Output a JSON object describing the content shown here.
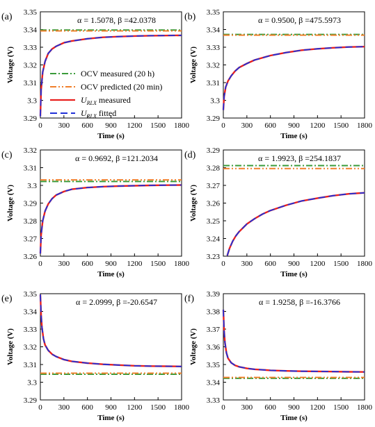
{
  "figure": {
    "legend": {
      "items": [
        {
          "label": "OCV measured (20 h)",
          "color": "#3a9b3a",
          "dash": "dashdot"
        },
        {
          "label": "OCV predicted (20 min)",
          "color": "#f07f2a",
          "dash": "dashdotdot"
        },
        {
          "label": "U_RLX measured",
          "color": "#e8201e",
          "dash": "solid"
        },
        {
          "label": "U_RLX fitted",
          "color": "#1f2fd8",
          "dash": "dash"
        }
      ]
    }
  },
  "chart_data": [
    {
      "panel": "(a)",
      "type": "line",
      "params": "α = 1.5078, β =42.0378",
      "xlabel": "Time (s)",
      "ylabel": "Voltage (V)",
      "xlim": [
        0,
        1800
      ],
      "ylim": [
        3.29,
        3.35
      ],
      "xticks": [
        0,
        300,
        600,
        900,
        1200,
        1500,
        1800
      ],
      "yticks": [
        "3.29",
        "3.3",
        "3.31",
        "3.32",
        "3.33",
        "3.34",
        "3.35"
      ],
      "ocv_measured": 3.3397,
      "ocv_predicted": 3.3392,
      "series": [
        {
          "name": "U_RLX measured",
          "x": [
            0,
            10,
            30,
            60,
            100,
            150,
            200,
            300,
            400,
            600,
            800,
            1000,
            1200,
            1400,
            1600,
            1800
          ],
          "y": [
            3.291,
            3.306,
            3.316,
            3.322,
            3.3265,
            3.329,
            3.3305,
            3.3325,
            3.3335,
            3.3348,
            3.3356,
            3.336,
            3.3363,
            3.3365,
            3.3366,
            3.3367
          ]
        },
        {
          "name": "U_RLX fitted",
          "x": [
            0,
            10,
            30,
            60,
            100,
            150,
            200,
            300,
            400,
            600,
            800,
            1000,
            1200,
            1400,
            1600,
            1800
          ],
          "y": [
            3.291,
            3.306,
            3.316,
            3.322,
            3.3265,
            3.329,
            3.3305,
            3.3325,
            3.3335,
            3.3348,
            3.3356,
            3.336,
            3.3363,
            3.3365,
            3.3366,
            3.3367
          ]
        }
      ]
    },
    {
      "panel": "(b)",
      "type": "line",
      "params": "α = 0.9500, β =475.5973",
      "xlabel": "Time (s)",
      "ylabel": "Voltage (V)",
      "xlim": [
        0,
        1800
      ],
      "ylim": [
        3.29,
        3.35
      ],
      "xticks": [
        0,
        300,
        600,
        900,
        1200,
        1500,
        1800
      ],
      "yticks": [
        "3.29",
        "3.3",
        "3.31",
        "3.32",
        "3.33",
        "3.34",
        "3.35"
      ],
      "ocv_measured": 3.3372,
      "ocv_predicted": 3.3368,
      "series": [
        {
          "name": "U_RLX measured",
          "x": [
            0,
            10,
            30,
            60,
            100,
            150,
            200,
            300,
            400,
            600,
            800,
            1000,
            1200,
            1400,
            1600,
            1800
          ],
          "y": [
            3.2945,
            3.302,
            3.3075,
            3.311,
            3.3138,
            3.3165,
            3.3185,
            3.3208,
            3.3228,
            3.3253,
            3.327,
            3.3283,
            3.3291,
            3.3297,
            3.3301,
            3.3303
          ]
        },
        {
          "name": "U_RLX fitted",
          "x": [
            0,
            10,
            30,
            60,
            100,
            150,
            200,
            300,
            400,
            600,
            800,
            1000,
            1200,
            1400,
            1600,
            1800
          ],
          "y": [
            3.2945,
            3.302,
            3.3075,
            3.311,
            3.3138,
            3.3165,
            3.3185,
            3.3208,
            3.3228,
            3.3253,
            3.327,
            3.3283,
            3.3291,
            3.3297,
            3.3301,
            3.3303
          ]
        }
      ]
    },
    {
      "panel": "(c)",
      "type": "line",
      "params": "α = 0.9692, β =121.2034",
      "xlabel": "Time (s)",
      "ylabel": "Voltage (V)",
      "xlim": [
        0,
        1800
      ],
      "ylim": [
        3.26,
        3.32
      ],
      "xticks": [
        0,
        300,
        600,
        900,
        1200,
        1500,
        1800
      ],
      "yticks": [
        "3.26",
        "3.27",
        "3.28",
        "3.29",
        "3.3",
        "3.31",
        "3.32"
      ],
      "ocv_measured": 3.3022,
      "ocv_predicted": 3.3031,
      "series": [
        {
          "name": "U_RLX measured",
          "x": [
            0,
            10,
            30,
            60,
            100,
            150,
            200,
            300,
            400,
            600,
            800,
            1000,
            1200,
            1400,
            1600,
            1800
          ],
          "y": [
            3.2615,
            3.272,
            3.28,
            3.2855,
            3.2895,
            3.2925,
            3.2945,
            3.2965,
            3.2978,
            3.2988,
            3.2993,
            3.2996,
            3.2998,
            3.3,
            3.3001,
            3.3002
          ]
        },
        {
          "name": "U_RLX fitted",
          "x": [
            0,
            10,
            30,
            60,
            100,
            150,
            200,
            300,
            400,
            600,
            800,
            1000,
            1200,
            1400,
            1600,
            1800
          ],
          "y": [
            3.2615,
            3.272,
            3.28,
            3.2855,
            3.2895,
            3.2925,
            3.2945,
            3.2965,
            3.2978,
            3.2988,
            3.2993,
            3.2996,
            3.2998,
            3.3,
            3.3001,
            3.3002
          ]
        }
      ]
    },
    {
      "panel": "(d)",
      "type": "line",
      "params": "α = 1.9923, β =254.1837",
      "xlabel": "Time (s)",
      "ylabel": "Voltage (V)",
      "xlim": [
        0,
        1800
      ],
      "ylim": [
        3.23,
        3.29
      ],
      "xticks": [
        0,
        300,
        600,
        900,
        1200,
        1500,
        1800
      ],
      "yticks": [
        "3.23",
        "3.24",
        "3.25",
        "3.26",
        "3.27",
        "3.28",
        "3.29"
      ],
      "ocv_measured": 3.2812,
      "ocv_predicted": 3.2795,
      "series": [
        {
          "name": "U_RLX measured",
          "x": [
            50,
            80,
            120,
            160,
            200,
            300,
            400,
            500,
            600,
            800,
            1000,
            1200,
            1400,
            1600,
            1800
          ],
          "y": [
            3.2303,
            3.2345,
            3.2385,
            3.2415,
            3.2438,
            3.2482,
            3.2512,
            3.2538,
            3.2558,
            3.2588,
            3.2612,
            3.2628,
            3.2642,
            3.2652,
            3.2658
          ]
        },
        {
          "name": "U_RLX fitted",
          "x": [
            50,
            80,
            120,
            160,
            200,
            300,
            400,
            500,
            600,
            800,
            1000,
            1200,
            1400,
            1600,
            1800
          ],
          "y": [
            3.2303,
            3.2345,
            3.2385,
            3.2415,
            3.2438,
            3.2482,
            3.2512,
            3.2538,
            3.2558,
            3.2588,
            3.2612,
            3.2628,
            3.2642,
            3.2652,
            3.2658
          ]
        }
      ]
    },
    {
      "panel": "(e)",
      "type": "line",
      "params": "α = 2.0999, β =-20.6547",
      "xlabel": "Time (s)",
      "ylabel": "Voltage (V)",
      "xlim": [
        0,
        1800
      ],
      "ylim": [
        3.29,
        3.35
      ],
      "xticks": [
        0,
        300,
        600,
        900,
        1200,
        1500,
        1800
      ],
      "yticks": [
        "3.29",
        "3.3",
        "3.31",
        "3.32",
        "3.33",
        "3.34",
        "3.35"
      ],
      "ocv_measured": 3.3045,
      "ocv_predicted": 3.3051,
      "series": [
        {
          "name": "U_RLX measured",
          "x": [
            0,
            10,
            20,
            40,
            60,
            100,
            150,
            200,
            300,
            400,
            600,
            800,
            1000,
            1200,
            1400,
            1600,
            1800
          ],
          "y": [
            3.3495,
            3.338,
            3.331,
            3.3245,
            3.321,
            3.318,
            3.3158,
            3.3145,
            3.3128,
            3.3118,
            3.3108,
            3.3101,
            3.3097,
            3.3093,
            3.3091,
            3.309,
            3.3089
          ]
        },
        {
          "name": "U_RLX fitted",
          "x": [
            0,
            10,
            20,
            40,
            60,
            100,
            150,
            200,
            300,
            400,
            600,
            800,
            1000,
            1200,
            1400,
            1600,
            1800
          ],
          "y": [
            3.3495,
            3.338,
            3.331,
            3.3245,
            3.321,
            3.318,
            3.3158,
            3.3145,
            3.3128,
            3.3118,
            3.3108,
            3.3101,
            3.3097,
            3.3093,
            3.3091,
            3.309,
            3.3089
          ]
        }
      ]
    },
    {
      "panel": "(f)",
      "type": "line",
      "params": "α = 1.9258, β =-16.3766",
      "xlabel": "Time (s)",
      "ylabel": "Voltage (V)",
      "xlim": [
        0,
        1800
      ],
      "ylim": [
        3.33,
        3.39
      ],
      "xticks": [
        0,
        300,
        600,
        900,
        1200,
        1500,
        1800
      ],
      "yticks": [
        "3.33",
        "3.34",
        "3.35",
        "3.36",
        "3.37",
        "3.38",
        "3.39"
      ],
      "ocv_measured": 3.3422,
      "ocv_predicted": 3.3427,
      "series": [
        {
          "name": "U_RLX measured",
          "x": [
            0,
            10,
            20,
            40,
            60,
            100,
            150,
            200,
            300,
            400,
            600,
            800,
            1000,
            1200,
            1400,
            1600,
            1800
          ],
          "y": [
            3.381,
            3.369,
            3.3625,
            3.3565,
            3.3535,
            3.351,
            3.3495,
            3.3487,
            3.3478,
            3.3473,
            3.3467,
            3.3464,
            3.3462,
            3.3461,
            3.346,
            3.3459,
            3.3458
          ]
        },
        {
          "name": "U_RLX fitted",
          "x": [
            0,
            10,
            20,
            40,
            60,
            100,
            150,
            200,
            300,
            400,
            600,
            800,
            1000,
            1200,
            1400,
            1600,
            1800
          ],
          "y": [
            3.381,
            3.369,
            3.3625,
            3.3565,
            3.3535,
            3.351,
            3.3495,
            3.3487,
            3.3478,
            3.3473,
            3.3467,
            3.3464,
            3.3462,
            3.3461,
            3.346,
            3.3459,
            3.3458
          ]
        }
      ]
    }
  ]
}
